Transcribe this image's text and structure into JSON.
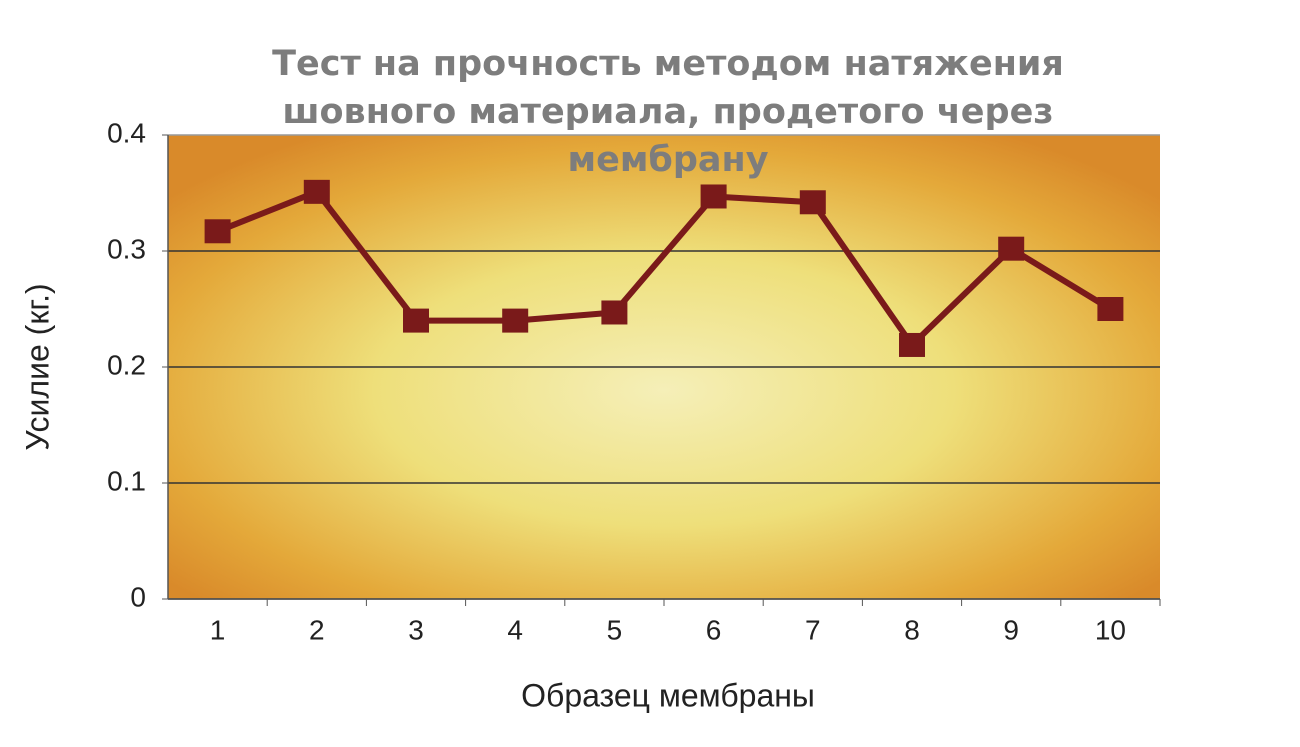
{
  "chart_data": {
    "type": "line",
    "title": "Тест на прочность методом натяжения шовного материала, продетого через мембрану",
    "x_label": "Образец мембраны",
    "y_label": "Усилие (кг.)",
    "categories": [
      "1",
      "2",
      "3",
      "4",
      "5",
      "6",
      "7",
      "8",
      "9",
      "10"
    ],
    "values": [
      0.317,
      0.351,
      0.24,
      0.24,
      0.247,
      0.347,
      0.342,
      0.219,
      0.302,
      0.25
    ],
    "color": "#7a1a1a",
    "ylim": [
      0,
      0.4
    ],
    "yticks": [
      0,
      0.1,
      0.2,
      0.3,
      0.4
    ],
    "grid": true
  }
}
